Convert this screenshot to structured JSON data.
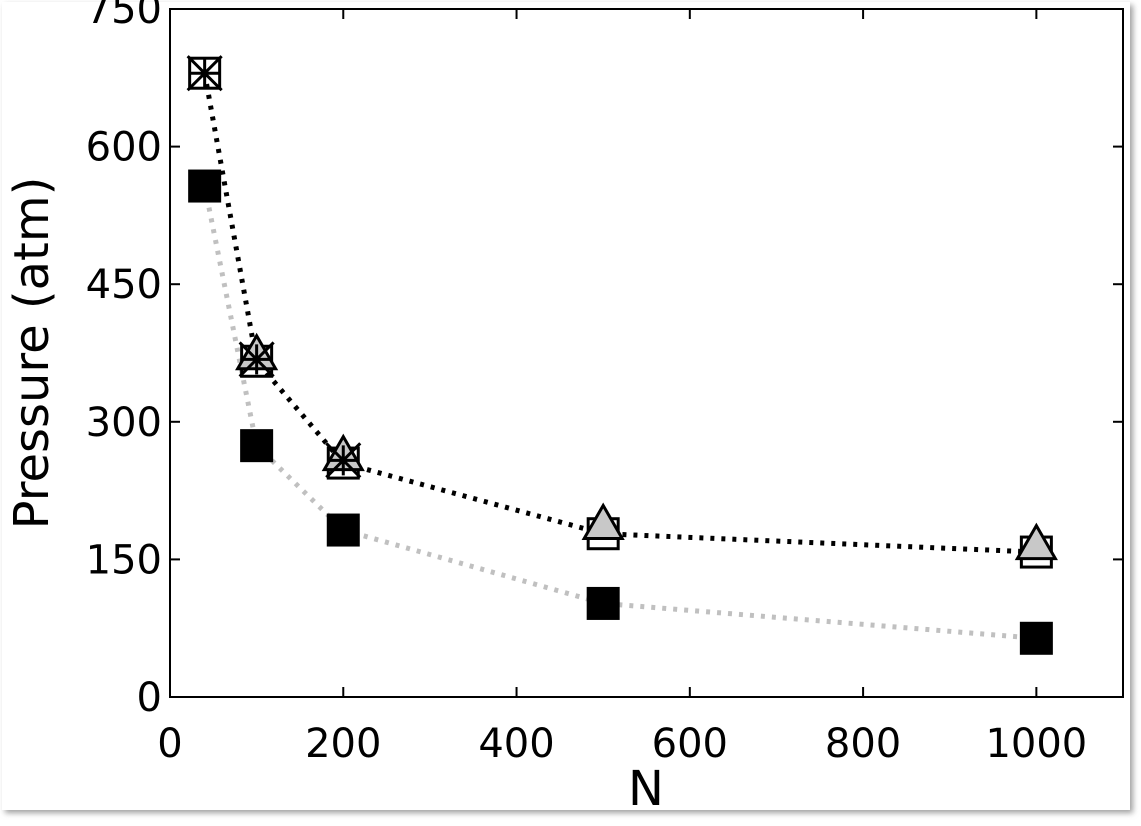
{
  "chart_data": {
    "type": "line",
    "x_label": "N",
    "y_label": "Pressure (atm)",
    "x": [
      40,
      100,
      200,
      500,
      1000
    ],
    "series": [
      {
        "color": "#000000",
        "fill": "#000000",
        "marker": "square",
        "line": "#c0c0c0",
        "values": [
          557,
          274,
          182,
          102,
          64
        ]
      },
      {
        "color": "#000000",
        "fill": "none",
        "marker": "square",
        "line": "#000000",
        "values": [
          680,
          366,
          255,
          178,
          158
        ]
      },
      {
        "color": "#000000",
        "fill": "#c8c8c8",
        "marker": "triangle",
        "line": "none",
        "values": [
          null,
          372,
          262,
          187,
          165
        ]
      },
      {
        "color": "#000000",
        "fill": "none",
        "marker": "x",
        "line": "none",
        "values": [
          680,
          368,
          258,
          null,
          null
        ]
      }
    ],
    "xlim": [
      0,
      1100
    ],
    "xticks": [
      0,
      200,
      400,
      600,
      800,
      1000
    ],
    "ylim": [
      0,
      750
    ],
    "yticks": [
      0,
      150,
      300,
      450,
      600,
      750
    ],
    "grid": false
  }
}
